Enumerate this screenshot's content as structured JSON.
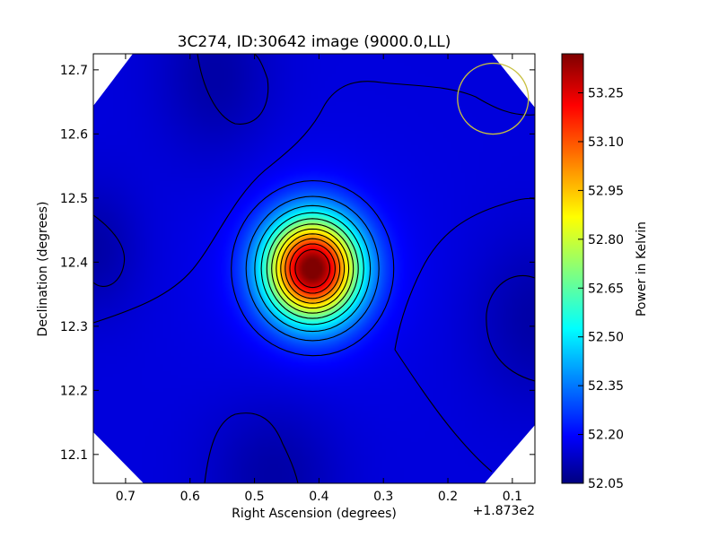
{
  "chart_data": {
    "type": "heatmap",
    "title": "3C274, ID:30642 image (9000.0,LL)",
    "xlabel": "Right Ascension (degrees)",
    "ylabel": "Declination (degrees)",
    "x_offset_label": "+1.873e2",
    "xlim": [
      0.75,
      0.065
    ],
    "ylim": [
      12.055,
      12.725
    ],
    "x_ticks": [
      0.7,
      0.6,
      0.5,
      0.4,
      0.3,
      0.2,
      0.1
    ],
    "x_tick_labels": [
      "0.7",
      "0.6",
      "0.5",
      "0.4",
      "0.3",
      "0.2",
      "0.1"
    ],
    "y_ticks": [
      12.1,
      12.2,
      12.3,
      12.4,
      12.5,
      12.6,
      12.7
    ],
    "y_tick_labels": [
      "12.1",
      "12.2",
      "12.3",
      "12.4",
      "12.5",
      "12.6",
      "12.7"
    ],
    "colormap": "jet",
    "colorbar": {
      "label": "Power in Kelvin",
      "range": [
        52.05,
        53.37
      ],
      "ticks": [
        52.05,
        52.2,
        52.35,
        52.5,
        52.65,
        52.8,
        52.95,
        53.1,
        53.25
      ],
      "tick_labels": [
        "52.05",
        "52.20",
        "52.35",
        "52.50",
        "52.65",
        "52.80",
        "52.95",
        "53.10",
        "53.25"
      ]
    },
    "peak": {
      "x": 0.41,
      "y": 12.39,
      "value": 53.35
    },
    "beam_circle": {
      "x": 0.13,
      "y": 12.655,
      "radius_deg": 0.055,
      "color": "#c8c040"
    },
    "contour_colors": {
      "lines": "#000000"
    }
  }
}
